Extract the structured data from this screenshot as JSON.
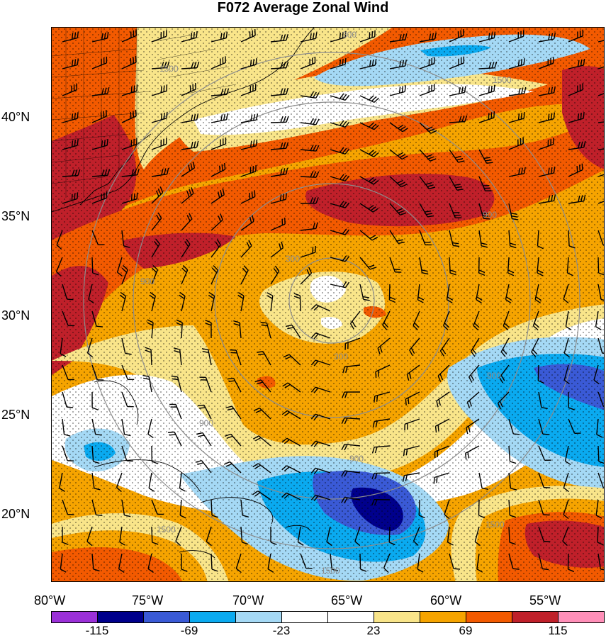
{
  "title": "F072 Average Zonal Wind",
  "latitude_labels": [
    "40°N",
    "35°N",
    "30°N",
    "25°N",
    "20°N"
  ],
  "longitude_labels": [
    "80°W",
    "75°W",
    "70°W",
    "65°W",
    "60°W",
    "55°W"
  ],
  "contour_labels": [
    "300",
    "900",
    "1500"
  ],
  "colorbar": {
    "labels": [
      "-115",
      "-69",
      "-23",
      "23",
      "69",
      "115"
    ],
    "colors": [
      "#9b30d8",
      "#00008c",
      "#3a5ad6",
      "#0aaaf0",
      "#a5d9f5",
      "#ffffff",
      "#ffffff",
      "#f9e58a",
      "#f6a400",
      "#f35a00",
      "#c0202a",
      "#ff8fb8"
    ]
  },
  "colors": {
    "dark_red": "#c0202a",
    "red_orange": "#f35a00",
    "orange": "#f6a400",
    "light_yellow": "#f9e58a",
    "white": "#ffffff",
    "light_blue": "#a5d9f5",
    "cyan_blue": "#0aaaf0",
    "medium_blue": "#3a5ad6",
    "navy": "#00008c",
    "range_ring": "#8c8c8c",
    "coast": "#000000"
  }
}
